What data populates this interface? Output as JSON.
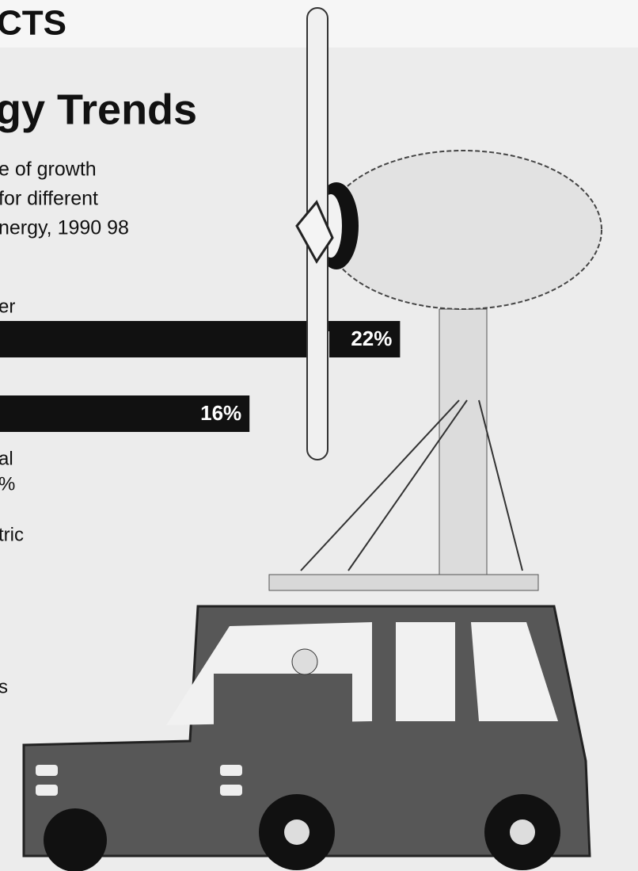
{
  "chart_data": {
    "type": "bar",
    "orientation": "horizontal",
    "header": "CTS",
    "title": "gy Trends",
    "subtitle": [
      "e of growth",
      "for different",
      "nergy, 1990 98"
    ],
    "categories": [
      "er",
      null
    ],
    "values": [
      22,
      16
    ],
    "value_labels": [
      "22%",
      "16%"
    ],
    "color": "#111111",
    "annotations": [
      "al",
      "%",
      "tric",
      "s"
    ]
  }
}
